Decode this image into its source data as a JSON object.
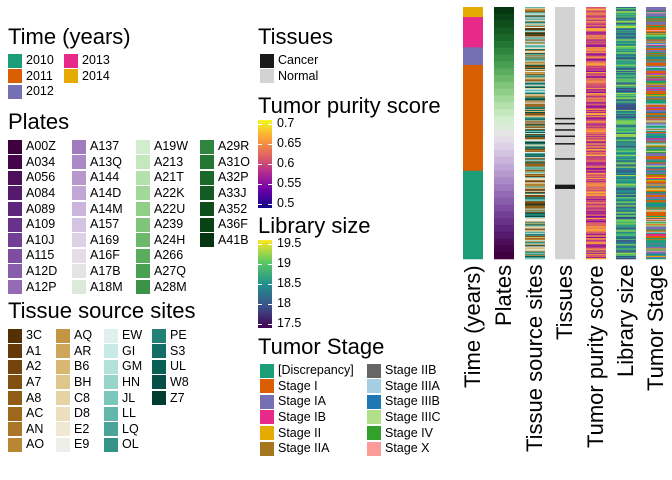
{
  "chart_data": {
    "type": "heatmap",
    "legends": {
      "time": {
        "title": "Time (years)",
        "items": [
          {
            "label": "2010",
            "color": "#1b9e77"
          },
          {
            "label": "2011",
            "color": "#d95f02"
          },
          {
            "label": "2012",
            "color": "#7570b3"
          },
          {
            "label": "2013",
            "color": "#e7298a"
          },
          {
            "label": "2014",
            "color": "#e6ab02"
          }
        ]
      },
      "plates": {
        "title": "Plates",
        "items": [
          {
            "label": "A00Z",
            "color": "#3f003f"
          },
          {
            "label": "A034",
            "color": "#45054a"
          },
          {
            "label": "A056",
            "color": "#4d0f5a"
          },
          {
            "label": "A084",
            "color": "#551a6b"
          },
          {
            "label": "A089",
            "color": "#5e257c"
          },
          {
            "label": "A109",
            "color": "#68318a"
          },
          {
            "label": "A10J",
            "color": "#723f96"
          },
          {
            "label": "A115",
            "color": "#7d4ea2"
          },
          {
            "label": "A12D",
            "color": "#885dab"
          },
          {
            "label": "A12P",
            "color": "#946bb4"
          },
          {
            "label": "A137",
            "color": "#a07bbe"
          },
          {
            "label": "A13Q",
            "color": "#ab89c6"
          },
          {
            "label": "A144",
            "color": "#b698cd"
          },
          {
            "label": "A14D",
            "color": "#c1a7d5"
          },
          {
            "label": "A14M",
            "color": "#cbb5dc"
          },
          {
            "label": "A157",
            "color": "#d5c3e2"
          },
          {
            "label": "A169",
            "color": "#ded0e6"
          },
          {
            "label": "A16F",
            "color": "#e4dce7"
          },
          {
            "label": "A17B",
            "color": "#e4e4e4"
          },
          {
            "label": "A18M",
            "color": "#dcebd9"
          },
          {
            "label": "A19W",
            "color": "#d2ecce"
          },
          {
            "label": "A213",
            "color": "#c4e7bd"
          },
          {
            "label": "A21T",
            "color": "#b4e0ac"
          },
          {
            "label": "A22K",
            "color": "#a3d89b"
          },
          {
            "label": "A22U",
            "color": "#91cf89"
          },
          {
            "label": "A239",
            "color": "#7fc47a"
          },
          {
            "label": "A24H",
            "color": "#6cb96b"
          },
          {
            "label": "A266",
            "color": "#5aad5e"
          },
          {
            "label": "A27Q",
            "color": "#4aa052"
          },
          {
            "label": "A28M",
            "color": "#3c9347"
          },
          {
            "label": "A29R",
            "color": "#2f853d"
          },
          {
            "label": "A31O",
            "color": "#247733"
          },
          {
            "label": "A32P",
            "color": "#1b692a"
          },
          {
            "label": "A33J",
            "color": "#135b22"
          },
          {
            "label": "A352",
            "color": "#0d4e1b"
          },
          {
            "label": "A36F",
            "color": "#094215"
          },
          {
            "label": "A41B",
            "color": "#063611"
          }
        ]
      },
      "tss": {
        "title": "Tissue source sites",
        "items": [
          {
            "label": "3C",
            "color": "#543005"
          },
          {
            "label": "A1",
            "color": "#633a08"
          },
          {
            "label": "A2",
            "color": "#72440b"
          },
          {
            "label": "A7",
            "color": "#814f10"
          },
          {
            "label": "A8",
            "color": "#905b15"
          },
          {
            "label": "AC",
            "color": "#9e681c"
          },
          {
            "label": "AN",
            "color": "#ab7627"
          },
          {
            "label": "AO",
            "color": "#b98635"
          },
          {
            "label": "AQ",
            "color": "#c49545"
          },
          {
            "label": "AR",
            "color": "#cea65a"
          },
          {
            "label": "B6",
            "color": "#d8b772"
          },
          {
            "label": "BH",
            "color": "#dfc68b"
          },
          {
            "label": "C8",
            "color": "#e6d3a4"
          },
          {
            "label": "D8",
            "color": "#ecdfbd"
          },
          {
            "label": "E2",
            "color": "#efe8d3"
          },
          {
            "label": "E9",
            "color": "#eeeee9"
          },
          {
            "label": "EW",
            "color": "#def1ee"
          },
          {
            "label": "GI",
            "color": "#c8eae4"
          },
          {
            "label": "GM",
            "color": "#b1e1d8"
          },
          {
            "label": "HN",
            "color": "#97d5ca"
          },
          {
            "label": "JL",
            "color": "#7cc7bb"
          },
          {
            "label": "LL",
            "color": "#62b6aa"
          },
          {
            "label": "LQ",
            "color": "#4aa598"
          },
          {
            "label": "OL",
            "color": "#349387"
          },
          {
            "label": "PE",
            "color": "#228176"
          },
          {
            "label": "S3",
            "color": "#136f65"
          },
          {
            "label": "UL",
            "color": "#0a5f55"
          },
          {
            "label": "W8",
            "color": "#054f46"
          },
          {
            "label": "Z7",
            "color": "#003c30"
          }
        ]
      },
      "tissues": {
        "title": "Tissues",
        "items": [
          {
            "label": "Cancer",
            "color": "#1a1a1a"
          },
          {
            "label": "Normal",
            "color": "#d3d3d3"
          }
        ]
      },
      "purity": {
        "title": "Tumor purity score",
        "ticks": [
          "0.7",
          "0.65",
          "0.6",
          "0.55",
          "0.5"
        ],
        "tick_values": [
          0.7,
          0.65,
          0.6,
          0.55,
          0.5
        ],
        "range": [
          0.49,
          0.71
        ],
        "colors": [
          "#0d0887",
          "#6a00a8",
          "#b12a90",
          "#e16462",
          "#fca636",
          "#f0f921"
        ]
      },
      "libsize": {
        "title": "Library size",
        "ticks": [
          "19.5",
          "19",
          "18.5",
          "18",
          "17.5"
        ],
        "tick_values": [
          19.5,
          19,
          18.5,
          18,
          17.5
        ],
        "range": [
          17.4,
          19.6
        ],
        "colors": [
          "#440154",
          "#3b528b",
          "#21908d",
          "#5dc963",
          "#fde725"
        ]
      },
      "stage": {
        "title": "Tumor Stage",
        "items": [
          {
            "label": "[Discrepancy]",
            "color": "#1b9e77"
          },
          {
            "label": "Stage I",
            "color": "#d95f02"
          },
          {
            "label": "Stage IA",
            "color": "#7570b3"
          },
          {
            "label": "Stage IB",
            "color": "#e7298a"
          },
          {
            "label": "Stage II",
            "color": "#e6ab02"
          },
          {
            "label": "Stage IIA",
            "color": "#a6761d"
          },
          {
            "label": "Stage IIB",
            "color": "#666666"
          },
          {
            "label": "Stage IIIA",
            "color": "#a6cee3"
          },
          {
            "label": "Stage IIIB",
            "color": "#1f78b4"
          },
          {
            "label": "Stage IIIC",
            "color": "#b2df8a"
          },
          {
            "label": "Stage IV",
            "color": "#33a02c"
          },
          {
            "label": "Stage X",
            "color": "#fb9a99"
          }
        ]
      }
    },
    "tracks": [
      {
        "key": "time",
        "label": "Time (years)"
      },
      {
        "key": "plates",
        "label": "Plates"
      },
      {
        "key": "tss",
        "label": "Tissue source sites"
      },
      {
        "key": "tissues",
        "label": "Tissues"
      },
      {
        "key": "purity",
        "label": "Tumor purity score"
      },
      {
        "key": "libsize",
        "label": "Library size"
      },
      {
        "key": "stage",
        "label": "Tumor Stage"
      }
    ],
    "time_track_segments": [
      {
        "label": "2014",
        "fraction": 0.04
      },
      {
        "label": "2013",
        "fraction": 0.12
      },
      {
        "label": "2012",
        "fraction": 0.07
      },
      {
        "label": "2011",
        "fraction": 0.42
      },
      {
        "label": "2010",
        "fraction": 0.35
      }
    ]
  }
}
